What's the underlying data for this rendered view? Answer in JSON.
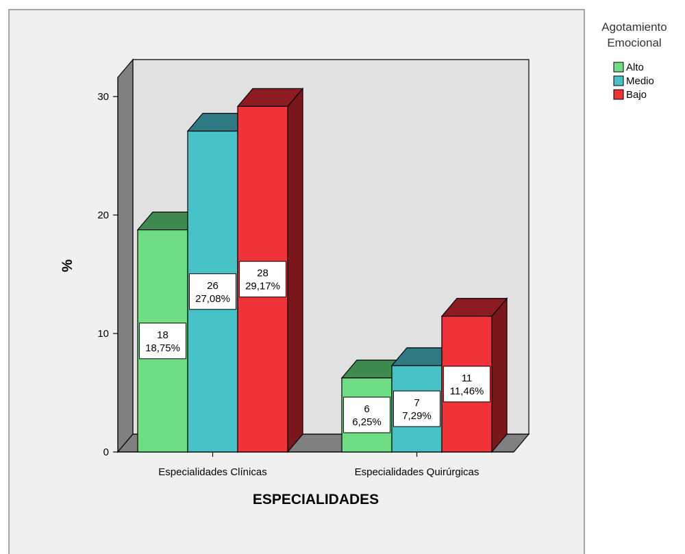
{
  "chart_data": {
    "type": "bar",
    "title": "",
    "xlabel": "ESPECIALIDADES",
    "ylabel": "%",
    "ylim": [
      0,
      32
    ],
    "yticks": [
      0,
      10,
      20,
      30
    ],
    "categories": [
      "Especialidades Clínicas",
      "Especialidades Quirúrgicas"
    ],
    "legend_title": [
      "Agotamiento",
      "Emocional"
    ],
    "legend_position": "top-right",
    "series": [
      {
        "name": "Alto",
        "values": [
          18.75,
          6.25
        ],
        "labels": [
          [
            "18",
            "18,75%"
          ],
          [
            "6",
            "6,25%"
          ]
        ],
        "color": "#6fdd83",
        "top_color": "#3f8a4f",
        "side_color": "#3a7a47"
      },
      {
        "name": "Medio",
        "values": [
          27.08,
          7.29
        ],
        "labels": [
          [
            "26",
            "27,08%"
          ],
          [
            "7",
            "7,29%"
          ]
        ],
        "color": "#46c2c6",
        "top_color": "#2d7a82",
        "side_color": "#26666e"
      },
      {
        "name": "Bajo",
        "values": [
          29.17,
          11.46
        ],
        "labels": [
          [
            "28",
            "29,17%"
          ],
          [
            "11",
            "11,46%"
          ]
        ],
        "color": "#f03339",
        "top_color": "#8c1c22",
        "side_color": "#7a161c"
      }
    ]
  }
}
